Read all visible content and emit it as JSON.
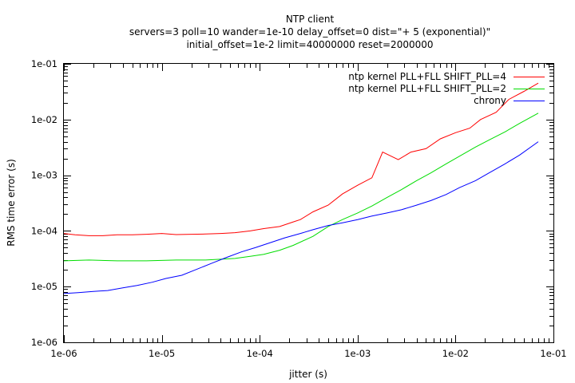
{
  "chart_data": {
    "type": "line",
    "title_lines": [
      "NTP client",
      "servers=3 poll=10 wander=1e-10 delay_offset=0 dist=\"+ 5 (exponential)\"",
      "initial_offset=1e-2 limit=40000000 reset=2000000"
    ],
    "xlabel": "jitter (s)",
    "ylabel": "RMS time error (s)",
    "x_scale": "log",
    "y_scale": "log",
    "xlim": [
      1e-06,
      0.1
    ],
    "ylim": [
      1e-06,
      0.1
    ],
    "x_ticks": [
      1e-06,
      1e-05,
      0.0001,
      0.001,
      0.01,
      0.1
    ],
    "x_tick_labels": [
      "1e-06",
      "1e-05",
      "1e-04",
      "1e-03",
      "1e-02",
      "1e-01"
    ],
    "y_ticks": [
      1e-06,
      1e-05,
      0.0001,
      0.001,
      0.01,
      0.1
    ],
    "y_tick_labels": [
      "1e-06",
      "1e-05",
      "1e-04",
      "1e-03",
      "1e-02",
      "1e-01"
    ],
    "grid": false,
    "legend_position": "top-right",
    "series": [
      {
        "name": "ntp kernel PLL+FLL SHIFT_PLL=4",
        "color": "#ff0000",
        "x": [
          1e-06,
          1.3e-06,
          1.8e-06,
          2.5e-06,
          3.5e-06,
          5e-06,
          7e-06,
          1e-05,
          1.4e-05,
          2e-05,
          2.8e-05,
          4e-05,
          5.6e-05,
          8e-05,
          0.00011,
          0.00016,
          0.00022,
          0.00026,
          0.00035,
          0.0005,
          0.0007,
          0.001,
          0.0014,
          0.0018,
          0.0026,
          0.0035,
          0.005,
          0.007,
          0.01,
          0.014,
          0.018,
          0.026,
          0.035,
          0.05,
          0.07
        ],
        "y": [
          9e-05,
          8.5e-05,
          8.2e-05,
          8.2e-05,
          8.5e-05,
          8.5e-05,
          8.7e-05,
          9e-05,
          8.6e-05,
          8.7e-05,
          8.8e-05,
          9e-05,
          9.3e-05,
          0.0001,
          0.00011,
          0.00012,
          0.000145,
          0.00016,
          0.00022,
          0.00029,
          0.00046,
          0.00066,
          0.0009,
          0.0026,
          0.0019,
          0.0026,
          0.003,
          0.0045,
          0.0058,
          0.007,
          0.01,
          0.0135,
          0.023,
          0.032,
          0.045
        ]
      },
      {
        "name": "ntp kernel PLL+FLL SHIFT_PLL=2",
        "color": "#00dd00",
        "x": [
          1e-06,
          1.8e-06,
          3.5e-06,
          7e-06,
          1.4e-05,
          2.8e-05,
          5.6e-05,
          8e-05,
          0.00011,
          0.00016,
          0.00022,
          0.00035,
          0.0005,
          0.0007,
          0.001,
          0.0014,
          0.002,
          0.0028,
          0.004,
          0.0056,
          0.008,
          0.011,
          0.016,
          0.022,
          0.032,
          0.045,
          0.07
        ],
        "y": [
          2.9e-05,
          3e-05,
          2.9e-05,
          2.9e-05,
          3e-05,
          3e-05,
          3.2e-05,
          3.5e-05,
          3.8e-05,
          4.5e-05,
          5.5e-05,
          8e-05,
          0.00012,
          0.00016,
          0.00021,
          0.00028,
          0.0004,
          0.00055,
          0.0008,
          0.0011,
          0.0016,
          0.0022,
          0.0032,
          0.0043,
          0.006,
          0.0085,
          0.013
        ]
      },
      {
        "name": "chrony",
        "color": "#0000ff",
        "x": [
          1e-06,
          1.4e-06,
          2e-06,
          2.8e-06,
          4e-06,
          5.6e-06,
          8e-06,
          1.1e-05,
          1.6e-05,
          2.2e-05,
          3.2e-05,
          4.5e-05,
          6.5e-05,
          9e-05,
          0.00013,
          0.00018,
          0.00026,
          0.00035,
          0.0005,
          0.0007,
          0.001,
          0.0014,
          0.002,
          0.0028,
          0.004,
          0.0056,
          0.008,
          0.011,
          0.016,
          0.022,
          0.032,
          0.045,
          0.07
        ],
        "y": [
          7.5e-06,
          7.8e-06,
          8.2e-06,
          8.5e-06,
          9.5e-06,
          1.05e-05,
          1.2e-05,
          1.4e-05,
          1.6e-05,
          2e-05,
          2.6e-05,
          3.3e-05,
          4.2e-05,
          5e-05,
          6.2e-05,
          7.5e-05,
          9e-05,
          0.000105,
          0.000125,
          0.00014,
          0.00016,
          0.000185,
          0.00021,
          0.00024,
          0.00029,
          0.00035,
          0.00045,
          0.0006,
          0.0008,
          0.0011,
          0.0016,
          0.0023,
          0.004
        ]
      }
    ]
  }
}
